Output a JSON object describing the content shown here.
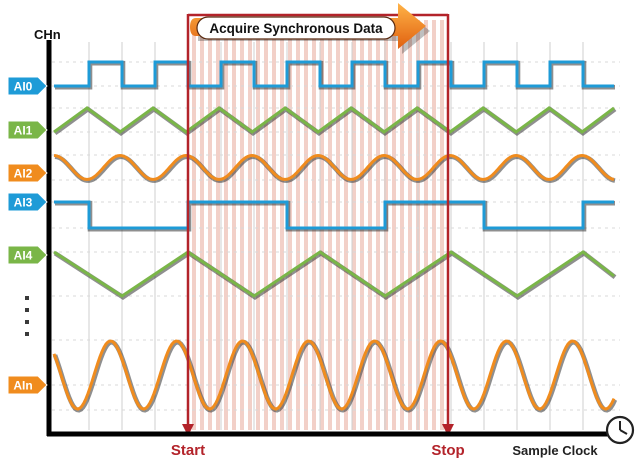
{
  "header": {
    "y_axis_label": "CHn",
    "banner_text": "Acquire Synchronous Data"
  },
  "axis": {
    "start_label": "Start",
    "stop_label": "Stop",
    "clock_label": "Sample Clock",
    "clock_icon": "clock-icon",
    "ellipsis_icon": "vertical-ellipsis-icon"
  },
  "colors": {
    "square_wave": "#1e9bd7",
    "triangle_wave": "#7ab648",
    "sine_wave": "#f08c1e",
    "marker": "#b3232a",
    "shade": "#e8a99a"
  },
  "channels": [
    {
      "label": "AI0",
      "color": "#1e9bd7",
      "wave": "square"
    },
    {
      "label": "AI1",
      "color": "#7ab648",
      "wave": "triangle"
    },
    {
      "label": "AI2",
      "color": "#f08c1e",
      "wave": "sine"
    },
    {
      "label": "AI3",
      "color": "#1e9bd7",
      "wave": "square"
    },
    {
      "label": "AI4",
      "color": "#7ab648",
      "wave": "triangle"
    },
    {
      "label": "AIn",
      "color": "#f08c1e",
      "wave": "sine"
    }
  ]
}
